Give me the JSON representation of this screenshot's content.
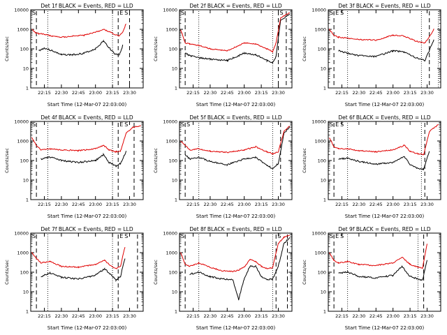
{
  "chart_data": [
    {
      "type": "line",
      "title": "Det 1f BLACK = Events, RED = LLD",
      "xlabel": "Start Time (12-Mar-07 22:03:00)",
      "ylabel": "Counts/sec",
      "ylim": [
        1,
        10000
      ],
      "yscale": "log",
      "xlim": [
        "22:03",
        "23:42"
      ],
      "xticks": [
        "22:15",
        "22:30",
        "22:45",
        "23:00",
        "23:15",
        "23:30"
      ],
      "yticks": [
        "1",
        "10",
        "100",
        "1000",
        "10000"
      ],
      "markers": {
        "dashed": [
          "22:08",
          "23:20",
          "23:30"
        ],
        "dotted": [
          "22:18",
          "23:15"
        ],
        "labels": [
          "S",
          "E",
          "S"
        ]
      },
      "x": [
        "22:04",
        "22:07",
        "22:10",
        "22:15",
        "22:22",
        "22:30",
        "22:40",
        "22:50",
        "23:00",
        "23:07",
        "23:13",
        "23:17",
        "23:21",
        "23:24",
        "23:27"
      ],
      "series": [
        {
          "name": "BLACK = Events",
          "color": "#000000",
          "values": [
            null,
            null,
            80,
            110,
            80,
            50,
            50,
            60,
            100,
            250,
            100,
            55,
            50,
            150,
            null
          ]
        },
        {
          "name": "RED = LLD",
          "color": "#e00000",
          "values": [
            1000,
            700,
            600,
            550,
            450,
            400,
            450,
            500,
            700,
            1000,
            700,
            550,
            450,
            700,
            2000
          ]
        }
      ]
    },
    {
      "type": "line",
      "title": "Det 2f BLACK = Events, RED = LLD",
      "xlabel": "Start Time (12-Mar-07 22:03:00)",
      "ylabel": "Counts/sec",
      "ylim": [
        1,
        10000
      ],
      "yscale": "log",
      "xlim": [
        "22:03",
        "23:42"
      ],
      "xticks": [
        "22:15",
        "22:30",
        "22:45",
        "23:00",
        "23:15",
        "23:30"
      ],
      "yticks": [
        "1",
        "10",
        "100",
        "1000",
        "10000"
      ],
      "markers": {
        "dashed": [
          "22:08",
          "23:30",
          "23:37"
        ],
        "dotted": [
          "22:20",
          "23:25"
        ],
        "labels": [
          "S",
          "S"
        ]
      },
      "x": [
        "22:04",
        "22:08",
        "22:12",
        "22:20",
        "22:30",
        "22:45",
        "23:00",
        "23:10",
        "23:20",
        "23:25",
        "23:28",
        "23:32",
        "23:40"
      ],
      "series": [
        {
          "name": "BLACK = Events",
          "color": "#000000",
          "values": [
            null,
            60,
            45,
            35,
            30,
            25,
            60,
            50,
            25,
            20,
            40,
            3000,
            6000
          ]
        },
        {
          "name": "RED = LLD",
          "color": "#e00000",
          "values": [
            1000,
            200,
            180,
            150,
            100,
            80,
            200,
            180,
            100,
            70,
            200,
            4000,
            7000
          ]
        }
      ]
    },
    {
      "type": "line",
      "title": "Det 3f BLACK = Events, RED = LLD",
      "xlabel": "Start Time (12-Mar-07 22:03:00)",
      "ylabel": "Counts/sec",
      "ylim": [
        1,
        10000
      ],
      "yscale": "log",
      "xlim": [
        "22:03",
        "23:42"
      ],
      "xticks": [
        "22:15",
        "22:30",
        "22:45",
        "23:00",
        "23:15",
        "23:30"
      ],
      "yticks": [
        "1",
        "10",
        "100",
        "1000",
        "10000"
      ],
      "markers": {
        "dashed": [
          "22:08",
          "23:32"
        ],
        "dotted": [
          "22:20",
          "23:25",
          "23:40"
        ],
        "labels": [
          "S",
          "E",
          "S"
        ]
      },
      "x": [
        "22:04",
        "22:08",
        "22:12",
        "22:20",
        "22:30",
        "22:45",
        "23:00",
        "23:10",
        "23:20",
        "23:28",
        "23:32",
        "23:36"
      ],
      "series": [
        {
          "name": "BLACK = Events",
          "color": "#000000",
          "values": [
            null,
            null,
            80,
            60,
            45,
            40,
            80,
            70,
            35,
            25,
            80,
            300
          ]
        },
        {
          "name": "RED = LLD",
          "color": "#e00000",
          "values": [
            1000,
            500,
            400,
            350,
            300,
            280,
            500,
            450,
            250,
            200,
            400,
            1000
          ]
        }
      ]
    },
    {
      "type": "line",
      "title": "Det 4f BLACK = Events, RED = LLD",
      "xlabel": "Start Time (12-Mar-07 22:03:00)",
      "ylabel": "Counts/sec",
      "ylim": [
        1,
        10000
      ],
      "yscale": "log",
      "xlim": [
        "22:03",
        "23:42"
      ],
      "xticks": [
        "22:15",
        "22:30",
        "22:45",
        "23:00",
        "23:15",
        "23:30"
      ],
      "yticks": [
        "1",
        "10",
        "100",
        "1000",
        "10000"
      ],
      "markers": {
        "dashed": [
          "22:08",
          "23:20",
          "23:34"
        ],
        "dotted": [
          "22:18",
          "23:15"
        ],
        "labels": [
          "S",
          "E",
          "S"
        ]
      },
      "x": [
        "22:04",
        "22:08",
        "22:12",
        "22:20",
        "22:30",
        "22:45",
        "23:00",
        "23:07",
        "23:12",
        "23:18",
        "23:22",
        "23:27",
        "23:33",
        "23:40"
      ],
      "series": [
        {
          "name": "BLACK = Events",
          "color": "#000000",
          "values": [
            null,
            null,
            120,
            150,
            100,
            80,
            100,
            200,
            80,
            50,
            70,
            300,
            null,
            null
          ]
        },
        {
          "name": "RED = LLD",
          "color": "#e00000",
          "values": [
            1500,
            600,
            350,
            400,
            350,
            320,
            400,
            600,
            350,
            280,
            300,
            2500,
            5000,
            6000
          ]
        }
      ]
    },
    {
      "type": "line",
      "title": "Det 5f BLACK = Events, RED = LLD",
      "xlabel": "Start Time (12-Mar-07 22:03:00)",
      "ylabel": "Counts/sec",
      "ylim": [
        1,
        10000
      ],
      "yscale": "log",
      "xlim": [
        "22:03",
        "23:42"
      ],
      "xticks": [
        "22:15",
        "22:30",
        "22:45",
        "23:00",
        "23:15",
        "23:30"
      ],
      "yticks": [
        "1",
        "10",
        "100",
        "1000",
        "10000"
      ],
      "markers": {
        "dashed": [
          "22:08",
          "23:32"
        ],
        "dotted": [
          "22:20",
          "23:25"
        ],
        "labels": [
          "S",
          "S"
        ]
      },
      "x": [
        "22:04",
        "22:08",
        "22:12",
        "22:20",
        "22:30",
        "22:45",
        "23:00",
        "23:10",
        "23:20",
        "23:25",
        "23:30",
        "23:35",
        "23:40"
      ],
      "series": [
        {
          "name": "BLACK = Events",
          "color": "#000000",
          "values": [
            null,
            200,
            120,
            150,
            90,
            60,
            120,
            150,
            55,
            40,
            70,
            2500,
            5000
          ]
        },
        {
          "name": "RED = LLD",
          "color": "#e00000",
          "values": [
            1000,
            600,
            350,
            400,
            300,
            260,
            350,
            500,
            280,
            220,
            280,
            3000,
            6000
          ]
        }
      ]
    },
    {
      "type": "line",
      "title": "Det 6f BLACK = Events, RED = LLD",
      "xlabel": "Start Time (12-Mar-07 22:03:00)",
      "ylabel": "Counts/sec",
      "ylim": [
        1,
        10000
      ],
      "yscale": "log",
      "xlim": [
        "22:03",
        "23:42"
      ],
      "xticks": [
        "22:15",
        "22:30",
        "22:45",
        "23:00",
        "23:15",
        "23:30"
      ],
      "yticks": [
        "1",
        "10",
        "100",
        "1000",
        "10000"
      ],
      "markers": {
        "dashed": [
          "22:08",
          "23:28"
        ],
        "dotted": [
          "22:20",
          "23:25"
        ],
        "labels": [
          "S",
          "E",
          "S"
        ]
      },
      "x": [
        "22:04",
        "22:08",
        "22:12",
        "22:20",
        "22:30",
        "22:45",
        "23:00",
        "23:10",
        "23:15",
        "23:22",
        "23:27",
        "23:32",
        "23:40"
      ],
      "series": [
        {
          "name": "BLACK = Events",
          "color": "#000000",
          "values": [
            null,
            null,
            120,
            130,
            90,
            65,
            80,
            160,
            60,
            40,
            35,
            300,
            null
          ]
        },
        {
          "name": "RED = LLD",
          "color": "#e00000",
          "values": [
            1500,
            500,
            400,
            400,
            320,
            280,
            350,
            600,
            300,
            220,
            200,
            3000,
            7000
          ]
        }
      ]
    },
    {
      "type": "line",
      "title": "Det 7f BLACK = Events, RED = LLD",
      "xlabel": "Start Time (12-Mar-07 22:03:00)",
      "ylabel": "Counts/sec",
      "ylim": [
        1,
        10000
      ],
      "yscale": "log",
      "xlim": [
        "22:03",
        "23:42"
      ],
      "xticks": [
        "22:15",
        "22:30",
        "22:45",
        "23:00",
        "23:15",
        "23:30"
      ],
      "yticks": [
        "1",
        "10",
        "100",
        "1000",
        "10000"
      ],
      "markers": {
        "dashed": [
          "22:08",
          "23:20",
          "23:37"
        ],
        "dotted": [
          "22:18",
          "23:15"
        ],
        "labels": [
          "S",
          "E",
          "S"
        ]
      },
      "x": [
        "22:04",
        "22:08",
        "22:12",
        "22:20",
        "22:30",
        "22:45",
        "23:00",
        "23:08",
        "23:14",
        "23:18",
        "23:22",
        "23:26"
      ],
      "series": [
        {
          "name": "BLACK = Events",
          "color": "#000000",
          "values": [
            null,
            null,
            60,
            90,
            55,
            45,
            70,
            150,
            70,
            40,
            60,
            500
          ]
        },
        {
          "name": "RED = LLD",
          "color": "#e00000",
          "values": [
            1000,
            500,
            300,
            350,
            200,
            180,
            250,
            400,
            200,
            150,
            200,
            2000
          ]
        }
      ]
    },
    {
      "type": "line",
      "title": "Det 8f BLACK = Events, RED = LLD",
      "xlabel": "Start Time (12-Mar-07 22:03:00)",
      "ylabel": "Counts/sec",
      "ylim": [
        1,
        10000
      ],
      "yscale": "log",
      "xlim": [
        "22:03",
        "23:42"
      ],
      "xticks": [
        "22:15",
        "22:30",
        "22:45",
        "23:00",
        "23:15",
        "23:30"
      ],
      "yticks": [
        "1",
        "10",
        "100",
        "1000",
        "10000"
      ],
      "markers": {
        "dashed": [
          "22:08",
          "23:28",
          "23:38"
        ],
        "dotted": [
          "22:20",
          "23:25"
        ],
        "labels": [
          "S",
          "S"
        ]
      },
      "x": [
        "22:04",
        "22:08",
        "22:12",
        "22:20",
        "22:30",
        "22:40",
        "22:50",
        "22:55",
        "23:00",
        "23:05",
        "23:10",
        "23:15",
        "23:20",
        "23:25",
        "23:30",
        "23:35",
        "23:40"
      ],
      "series": [
        {
          "name": "BLACK = Events",
          "color": "#000000",
          "values": [
            null,
            null,
            80,
            100,
            60,
            45,
            40,
            4,
            45,
            200,
            200,
            60,
            40,
            45,
            200,
            3000,
            6000
          ]
        },
        {
          "name": "RED = LLD",
          "color": "#e00000",
          "values": [
            1000,
            250,
            200,
            300,
            180,
            120,
            110,
            130,
            180,
            450,
            350,
            200,
            150,
            170,
            3000,
            6000,
            8000
          ]
        }
      ]
    },
    {
      "type": "line",
      "title": "Det 9f BLACK = Events, RED = LLD",
      "xlabel": "Start Time (12-Mar-07 22:03:00)",
      "ylabel": "Counts/sec",
      "ylim": [
        1,
        10000
      ],
      "yscale": "log",
      "xlim": [
        "22:03",
        "23:42"
      ],
      "xticks": [
        "22:15",
        "22:30",
        "22:45",
        "23:00",
        "23:15",
        "23:30"
      ],
      "yticks": [
        "1",
        "10",
        "100",
        "1000",
        "10000"
      ],
      "markers": {
        "dashed": [
          "22:08",
          "23:27"
        ],
        "dotted": [
          "22:20",
          "23:22"
        ],
        "labels": [
          "S",
          "E",
          "S"
        ]
      },
      "x": [
        "22:04",
        "22:08",
        "22:12",
        "22:20",
        "22:30",
        "22:45",
        "23:00",
        "23:08",
        "23:15",
        "23:22",
        "23:26",
        "23:30"
      ],
      "series": [
        {
          "name": "BLACK = Events",
          "color": "#000000",
          "values": [
            null,
            null,
            90,
            100,
            60,
            50,
            70,
            200,
            60,
            45,
            40,
            400
          ]
        },
        {
          "name": "RED = LLD",
          "color": "#e00000",
          "values": [
            1000,
            400,
            300,
            350,
            250,
            220,
            300,
            600,
            250,
            180,
            160,
            3000
          ]
        }
      ]
    }
  ]
}
